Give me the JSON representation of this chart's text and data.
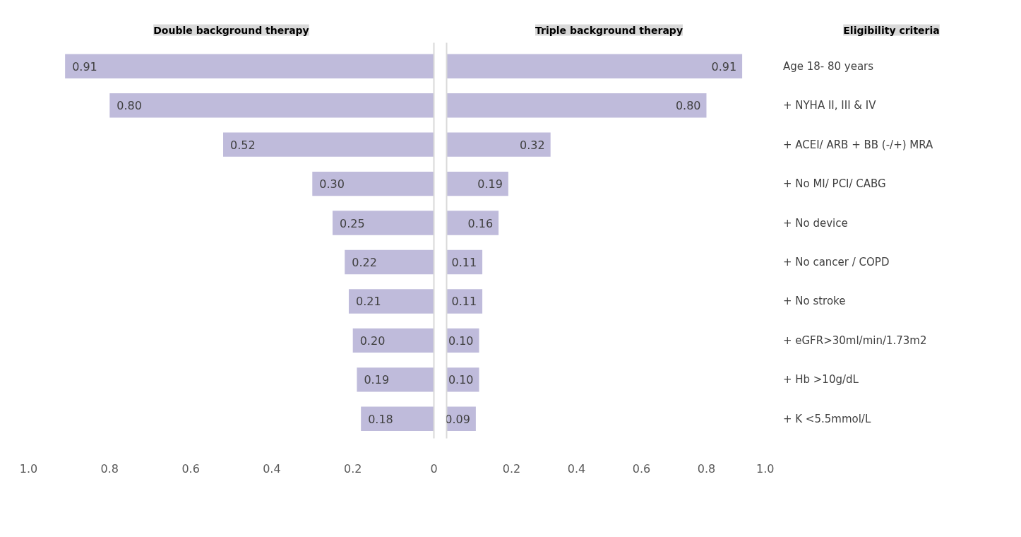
{
  "chart_data": [
    {
      "type": "bar",
      "orientation": "horizontal",
      "title": "Double background therapy",
      "categories": [
        null,
        null,
        null,
        null,
        null,
        null,
        null,
        null,
        null,
        null
      ],
      "values": [
        0.91,
        0.8,
        0.52,
        0.3,
        0.25,
        0.22,
        0.21,
        0.2,
        0.19,
        0.18
      ],
      "value_labels": [
        "0.91",
        "0.80",
        "0.52",
        "0.30",
        "0.25",
        "0.22",
        "0.21",
        "0.20",
        "0.19",
        "0.18"
      ],
      "color": "#bfbbdb",
      "xlim": [
        1.0,
        0
      ],
      "xticks": [
        {
          "value": 1.0,
          "label": "1.0"
        },
        0.8,
        0.6,
        0.4,
        0.2,
        0
      ]
    },
    {
      "type": "bar",
      "orientation": "horizontal",
      "title": "Triple background therapy",
      "ylabel": "Eligibility criteria",
      "categories": [
        "Age 18- 80 years",
        "+    NYHA II, III & IV",
        "+    ACEI/ ARB + BB (-/+) MRA",
        "+    No MI/ PCI/ CABG",
        "+    No device",
        "+    No cancer / COPD",
        "+    No stroke",
        "+    eGFR>30ml/min/1.73m2",
        "+    Hb >10g/dL",
        "+    K <5.5mmol/L"
      ],
      "values": [
        0.91,
        0.8,
        0.32,
        0.19,
        0.16,
        0.11,
        0.11,
        0.1,
        0.1,
        0.09
      ],
      "value_labels": [
        "0.91",
        "0.80",
        "0.32",
        "0.19",
        "0.16",
        "0.11",
        "0.11",
        "0.10",
        "0.10",
        "0.09"
      ],
      "color": "#bfbbdb",
      "xlim": [
        0,
        1.0
      ],
      "xticks": [
        0.2,
        0.4,
        0.6,
        0.8,
        {
          "value": 1.0,
          "label": "1.0"
        }
      ]
    }
  ]
}
